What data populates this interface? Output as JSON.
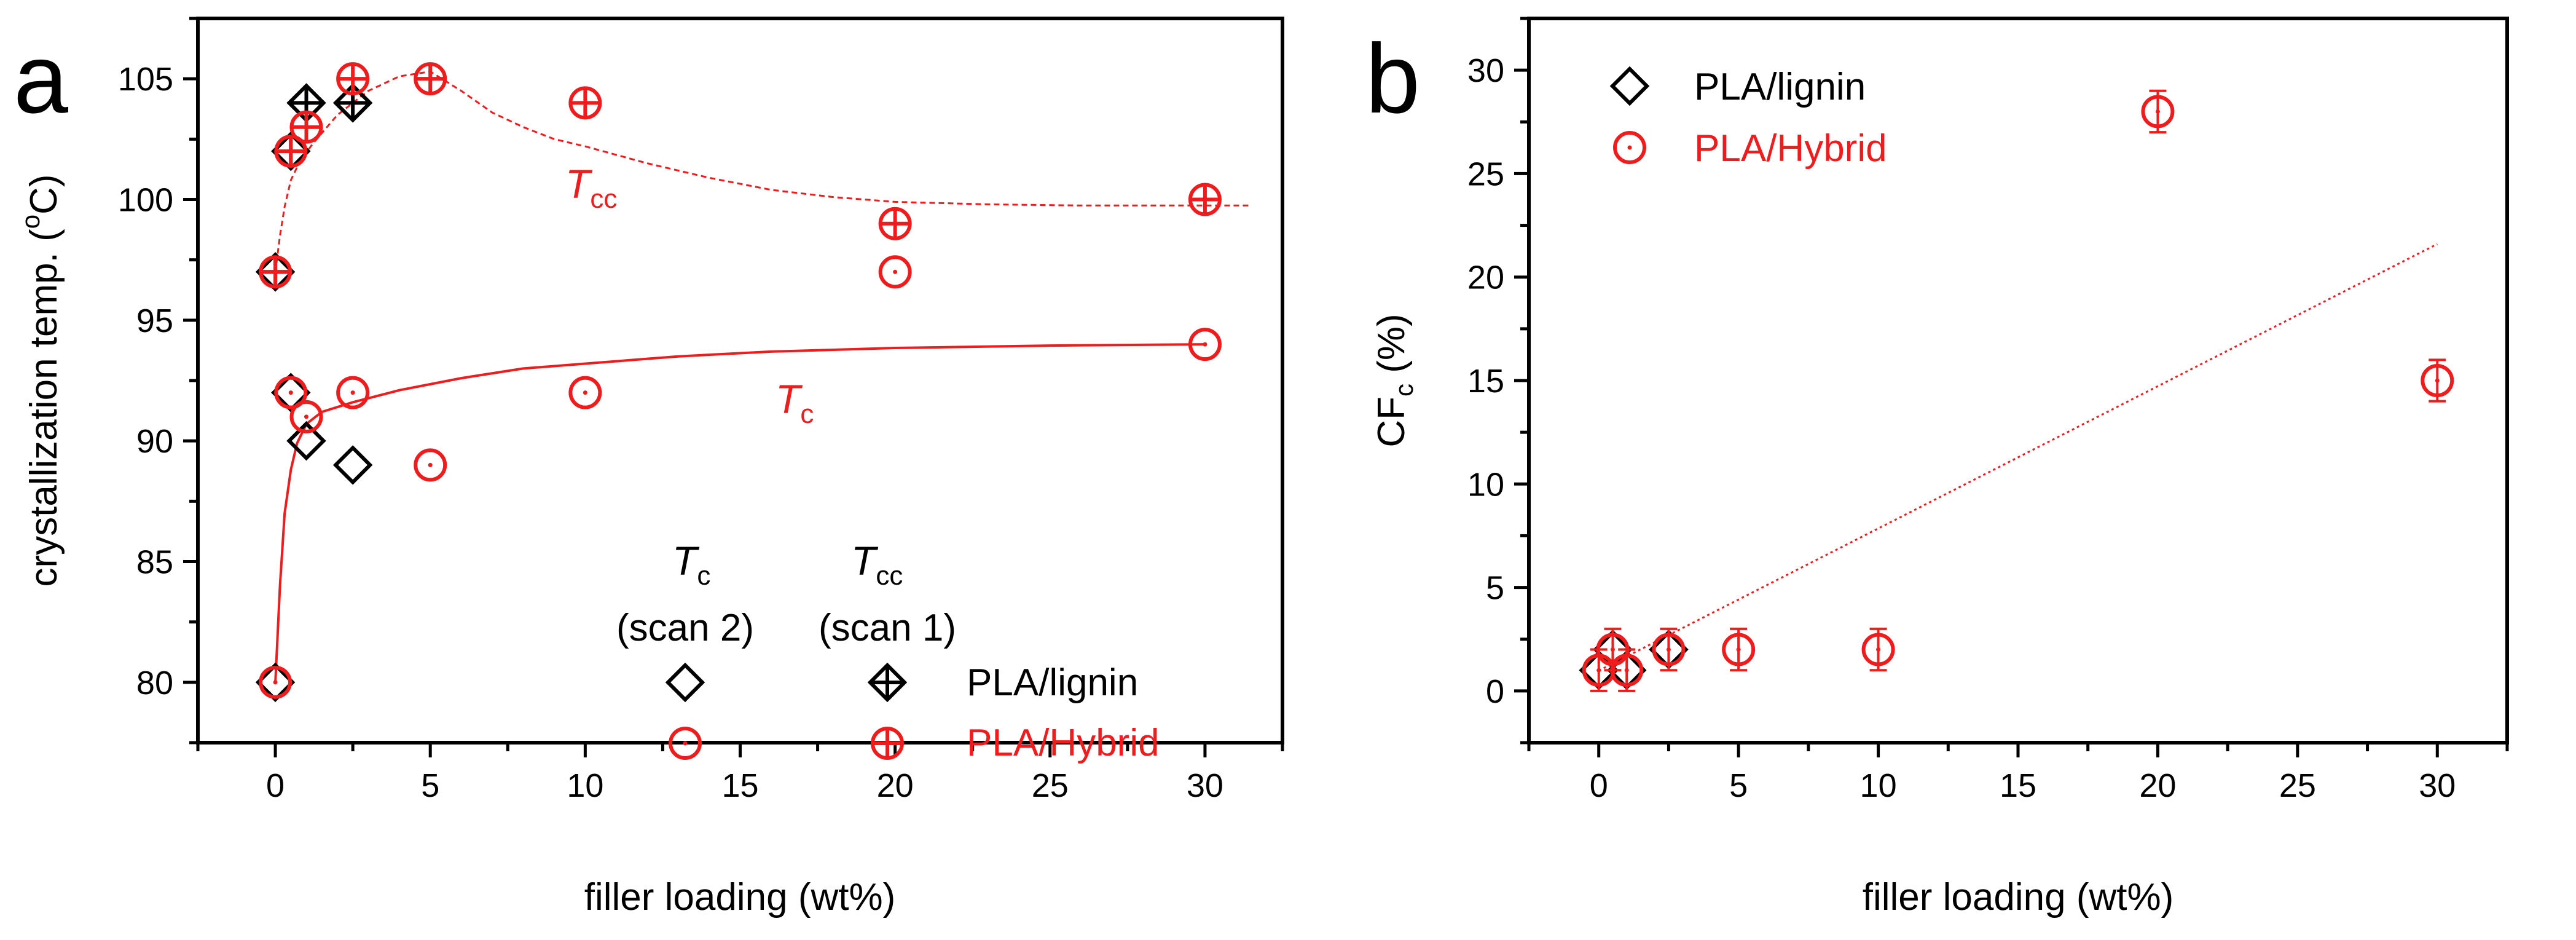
{
  "colors": {
    "axis": "#000000",
    "lignin": "#000000",
    "hybrid": "#ee1c1c"
  },
  "chart_data": [
    {
      "type": "scatter",
      "panel_label": "a",
      "xlabel": "filler loading (wt%)",
      "ylabel": "crystallization temp. (",
      "ylabel_sup": "o",
      "ylabel_end": "C)",
      "xlim": [
        -2.5,
        32.5
      ],
      "ylim": [
        77.5,
        107.5
      ],
      "x_ticks": [
        0,
        5,
        10,
        15,
        20,
        25,
        30
      ],
      "y_ticks": [
        80,
        85,
        90,
        95,
        100,
        105
      ],
      "series": [
        {
          "name": "PLA/lignin Tc (scan 2)",
          "marker": "diamond",
          "color": "lignin",
          "points": [
            [
              0,
              80
            ],
            [
              0.5,
              92
            ],
            [
              1,
              90
            ],
            [
              2.5,
              89
            ]
          ]
        },
        {
          "name": "PLA/lignin Tcc (scan 1)",
          "marker": "diamond-plus",
          "color": "lignin",
          "points": [
            [
              0,
              97
            ],
            [
              0.5,
              102
            ],
            [
              1,
              104
            ],
            [
              2.5,
              104
            ]
          ]
        },
        {
          "name": "PLA/Hybrid Tc (scan 2)",
          "marker": "circle-dot",
          "color": "hybrid",
          "points": [
            [
              0,
              80
            ],
            [
              0.5,
              92
            ],
            [
              1,
              91
            ],
            [
              2.5,
              92
            ],
            [
              5,
              89
            ],
            [
              10,
              92
            ],
            [
              20,
              97
            ],
            [
              30,
              94
            ]
          ]
        },
        {
          "name": "PLA/Hybrid Tcc (scan 1)",
          "marker": "circle-plus",
          "color": "hybrid",
          "points": [
            [
              0,
              97
            ],
            [
              0.5,
              102
            ],
            [
              1,
              103
            ],
            [
              2.5,
              105
            ],
            [
              5,
              105
            ],
            [
              10,
              104
            ],
            [
              20,
              99
            ],
            [
              30,
              100
            ]
          ]
        }
      ],
      "curves": [
        {
          "name": "Tc fit",
          "style": "solid",
          "color": "hybrid",
          "points": [
            [
              0,
              80
            ],
            [
              0.15,
              84
            ],
            [
              0.3,
              87
            ],
            [
              0.5,
              88.8
            ],
            [
              0.7,
              89.9
            ],
            [
              1,
              90.7
            ],
            [
              1.5,
              91.2
            ],
            [
              2.5,
              91.6
            ],
            [
              4,
              92.1
            ],
            [
              6,
              92.6
            ],
            [
              8,
              93
            ],
            [
              10,
              93.2
            ],
            [
              13,
              93.5
            ],
            [
              16,
              93.7
            ],
            [
              20,
              93.85
            ],
            [
              25,
              93.95
            ],
            [
              30,
              94
            ]
          ]
        },
        {
          "name": "Tcc fit",
          "style": "dashed",
          "color": "hybrid",
          "points": [
            [
              0,
              97
            ],
            [
              0.15,
              98.5
            ],
            [
              0.3,
              99.7
            ],
            [
              0.5,
              100.8
            ],
            [
              0.8,
              101.6
            ],
            [
              1.2,
              102.3
            ],
            [
              2,
              103.5
            ],
            [
              3,
              104.5
            ],
            [
              4,
              105.1
            ],
            [
              5,
              105.3
            ],
            [
              6,
              104.5
            ],
            [
              7,
              103.6
            ],
            [
              8,
              103
            ],
            [
              9,
              102.5
            ],
            [
              10,
              102.2
            ],
            [
              12,
              101.5
            ],
            [
              14,
              100.9
            ],
            [
              16,
              100.4
            ],
            [
              18,
              100.1
            ],
            [
              20,
              99.9
            ],
            [
              23,
              99.8
            ],
            [
              26,
              99.75
            ],
            [
              29,
              99.75
            ],
            [
              31.5,
              99.75
            ]
          ]
        }
      ],
      "annotations": [
        {
          "italic": "T",
          "sub": "cc",
          "at": [
            10.8,
            100.6
          ],
          "color": "hybrid"
        },
        {
          "italic": "T",
          "sub": "c",
          "at": [
            17.8,
            91.4
          ],
          "color": "hybrid"
        }
      ],
      "legend": {
        "position": "bottom-right",
        "col1": {
          "italic": "T",
          "sub": "c",
          "scan": "(scan 2)"
        },
        "col2": {
          "italic": "T",
          "sub": "cc",
          "scan": "(scan 1)"
        },
        "rows": [
          {
            "label": "PLA/lignin",
            "color": "lignin",
            "markers": [
              "diamond",
              "diamond-plus"
            ]
          },
          {
            "label": "PLA/Hybrid",
            "color": "hybrid",
            "markers": [
              "circle-dot",
              "circle-plus"
            ]
          }
        ]
      }
    },
    {
      "type": "scatter",
      "panel_label": "b",
      "xlabel": "filler loading (wt%)",
      "ylabel": "CF",
      "ylabel_sub": "c",
      "ylabel_end": " (%)",
      "xlim": [
        -2.5,
        32.5
      ],
      "ylim": [
        -2.5,
        32.5
      ],
      "x_ticks": [
        0,
        5,
        10,
        15,
        20,
        25,
        30
      ],
      "y_ticks": [
        0,
        5,
        10,
        15,
        20,
        25,
        30
      ],
      "series": [
        {
          "name": "PLA/lignin",
          "marker": "diamond",
          "color": "lignin",
          "error": 0,
          "points": [
            [
              0,
              1
            ],
            [
              0.5,
              2
            ],
            [
              1,
              1
            ],
            [
              2.5,
              2
            ]
          ]
        },
        {
          "name": "PLA/Hybrid",
          "marker": "circle-dot",
          "color": "hybrid",
          "error": 1,
          "points": [
            [
              0,
              1
            ],
            [
              0.5,
              2
            ],
            [
              1,
              1
            ],
            [
              2.5,
              2
            ],
            [
              5,
              2
            ],
            [
              10,
              2
            ],
            [
              20,
              28
            ],
            [
              30,
              15
            ]
          ]
        }
      ],
      "curves": [
        {
          "name": "linear fit",
          "style": "dotted",
          "color": "hybrid",
          "points": [
            [
              0,
              0.98
            ],
            [
              30,
              21.6
            ]
          ]
        }
      ],
      "legend": {
        "position": "top-left",
        "rows": [
          {
            "label": "PLA/lignin",
            "color": "lignin",
            "markers": [
              "diamond"
            ]
          },
          {
            "label": "PLA/Hybrid",
            "color": "hybrid",
            "markers": [
              "circle-dot"
            ]
          }
        ]
      }
    }
  ]
}
